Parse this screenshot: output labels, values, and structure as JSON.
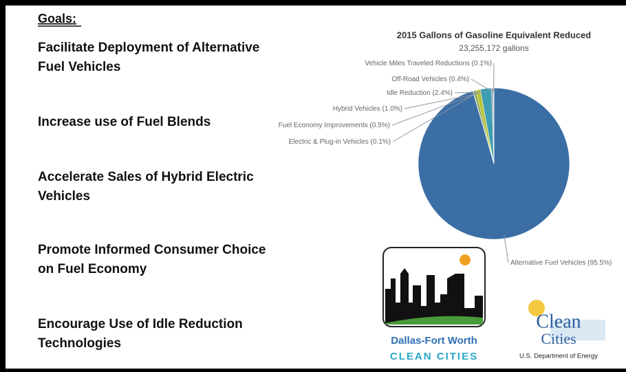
{
  "heading": "Goals:",
  "goals": [
    [
      "Facilitate Deployment of Alternative",
      "Fuel Vehicles"
    ],
    [
      "Increase use of Fuel Blends"
    ],
    [
      "Accelerate Sales of Hybrid Electric",
      "Vehicles"
    ],
    [
      "Promote Informed Consumer Choice",
      "on Fuel Economy"
    ],
    [
      "Encourage Use of Idle Reduction",
      "Technologies"
    ]
  ],
  "chart_data": {
    "type": "pie",
    "title": "2015 Gallons of Gasoline Equivalent Reduced",
    "subtitle": "23,255,172 gallons",
    "categories": [
      "Alternative Fuel Vehicles",
      "Electric & Plug-in Vehicles",
      "Fuel Economy Improvements",
      "Hybrid Vehicles",
      "Idle Reduction",
      "Off-Road Vehicles",
      "Vehicle Miles Traveled Reductions"
    ],
    "values": [
      95.5,
      0.1,
      0.5,
      1.0,
      2.4,
      0.4,
      0.1
    ],
    "value_labels": [
      "(95.5%)",
      "(0.1%)",
      "(0.5%)",
      "(1.0%)",
      "(2.4%)",
      "(0.4%)",
      "(0.1%)"
    ],
    "colors": [
      "#3b6ea5",
      "#2d3f5e",
      "#7f9a3b",
      "#b6c23d",
      "#3d9db3",
      "#9aa3ad",
      "#c9ced6"
    ]
  },
  "logos": {
    "dfw": [
      "Dallas-Fort Worth",
      "CLEAN CITIES"
    ],
    "cc": [
      "Clean",
      "Cities",
      "U.S. Department of Energy"
    ]
  }
}
